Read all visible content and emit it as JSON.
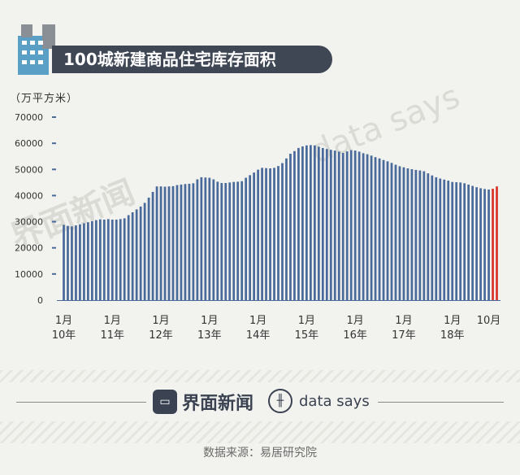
{
  "title": "100城新建商品住宅库存面积",
  "unit": "（万平方米）",
  "watermarks": {
    "left": "界面新闻",
    "right": "data says"
  },
  "footer": {
    "brand1": "界面新闻",
    "brand2": "data says",
    "source": "数据来源：易居研究院"
  },
  "colors": {
    "bar": "#4a6a9c",
    "highlight": "#d9342b",
    "title_bg": "#3f4654"
  },
  "chart_data": {
    "type": "bar",
    "title": "100城新建商品住宅库存面积",
    "ylabel": "（万平方米）",
    "ylim": [
      0,
      70000
    ],
    "yticks": [
      0,
      10000,
      20000,
      30000,
      40000,
      50000,
      60000,
      70000
    ],
    "xtick_labels": [
      {
        "index": 0,
        "lines": [
          "1月",
          "10年"
        ]
      },
      {
        "index": 12,
        "lines": [
          "1月",
          "11年"
        ]
      },
      {
        "index": 24,
        "lines": [
          "1月",
          "12年"
        ]
      },
      {
        "index": 36,
        "lines": [
          "1月",
          "13年"
        ]
      },
      {
        "index": 48,
        "lines": [
          "1月",
          "14年"
        ]
      },
      {
        "index": 60,
        "lines": [
          "1月",
          "15年"
        ]
      },
      {
        "index": 72,
        "lines": [
          "1月",
          "16年"
        ]
      },
      {
        "index": 84,
        "lines": [
          "1月",
          "17年"
        ]
      },
      {
        "index": 96,
        "lines": [
          "1月",
          "18年"
        ]
      },
      {
        "index": 105,
        "lines": [
          "10月"
        ]
      }
    ],
    "highlight_last": 2,
    "values": [
      28800,
      28400,
      28200,
      28600,
      29000,
      29400,
      29800,
      30200,
      30600,
      30900,
      30800,
      31000,
      30800,
      30800,
      31000,
      31300,
      32500,
      33600,
      34700,
      35800,
      37200,
      39200,
      41400,
      43500,
      43500,
      43400,
      43500,
      43600,
      44000,
      44200,
      44400,
      44500,
      44700,
      46200,
      47000,
      46900,
      46800,
      46200,
      45300,
      44800,
      44800,
      45000,
      45200,
      45300,
      45500,
      46800,
      47800,
      48800,
      49900,
      50600,
      50500,
      50400,
      50600,
      51300,
      52400,
      54200,
      56000,
      57000,
      58200,
      58800,
      59200,
      59300,
      59200,
      58700,
      58200,
      57800,
      57500,
      57200,
      56800,
      56300,
      56900,
      57400,
      57200,
      56800,
      56200,
      55800,
      55300,
      54700,
      54200,
      53600,
      53100,
      52500,
      51800,
      51200,
      50800,
      50400,
      50100,
      49800,
      49600,
      49300,
      48500,
      47700,
      47000,
      46500,
      46100,
      45700,
      45200,
      45100,
      45000,
      44700,
      44200,
      43700,
      43200,
      42800,
      42500,
      42300,
      42600,
      43500
    ]
  }
}
